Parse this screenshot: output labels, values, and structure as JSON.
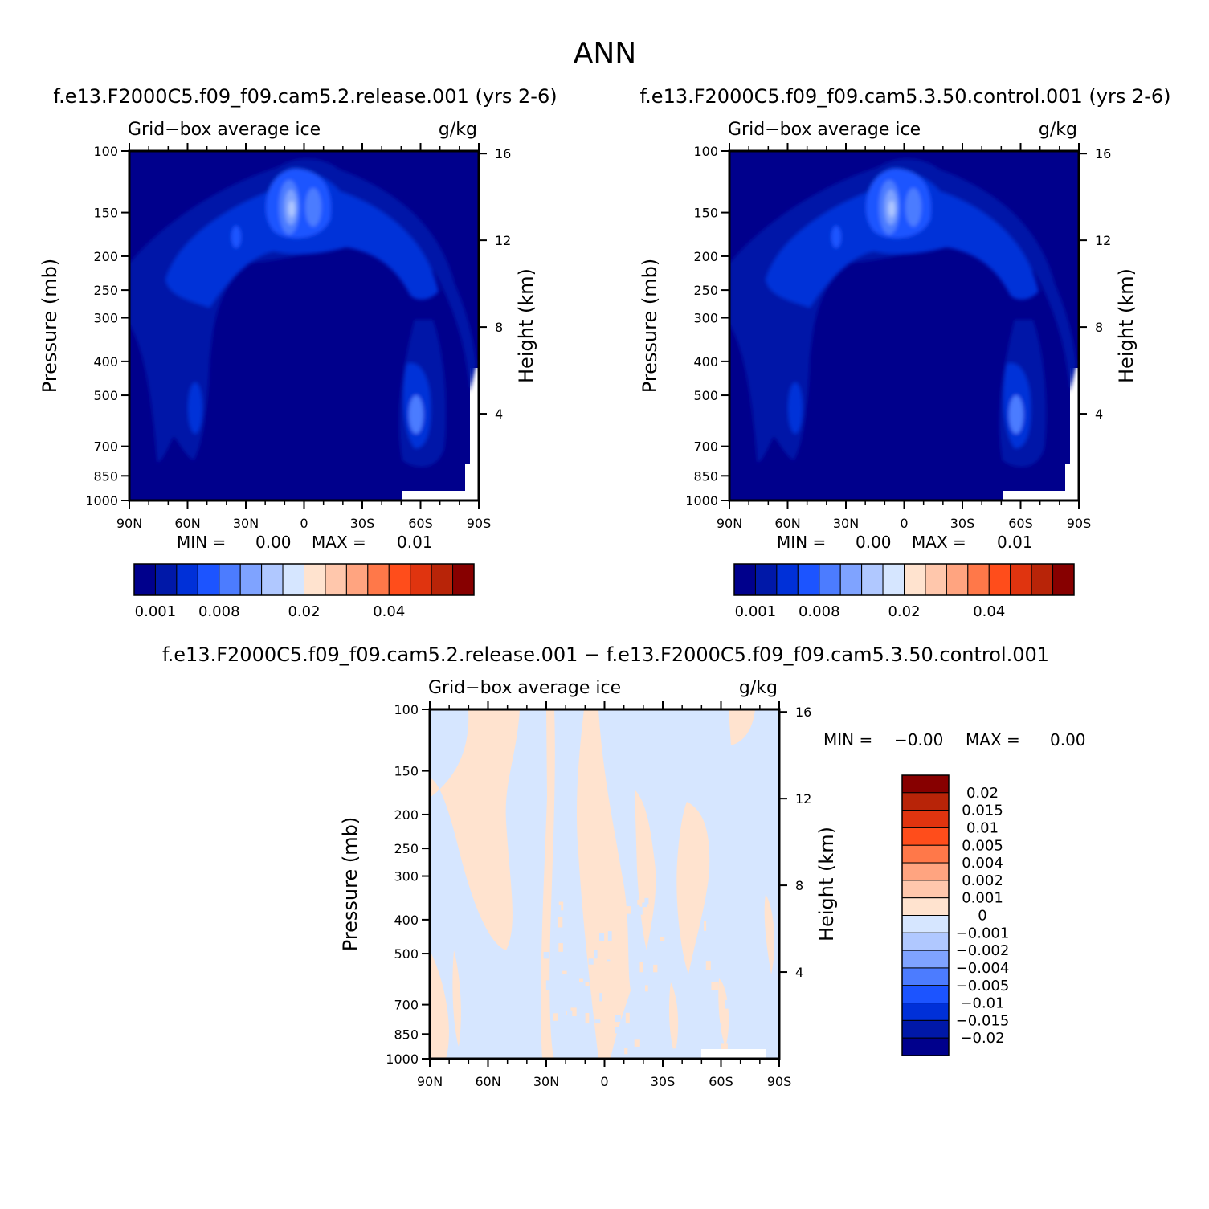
{
  "page_title": "ANN",
  "colors": {
    "ice_levels": [
      "#00008C",
      "#0018A8",
      "#0030D8",
      "#1C54FF",
      "#4C7CFF",
      "#7FA3FF",
      "#B0C8FF",
      "#D6E6FF",
      "#FFE3CF",
      "#FFC7AC",
      "#FFA480",
      "#FF7849",
      "#FF4D1B",
      "#E0340F",
      "#B82408",
      "#870000"
    ],
    "diff_levels": [
      "#00008C",
      "#0018A8",
      "#0030D8",
      "#1C54FF",
      "#4C7CFF",
      "#7FA3FF",
      "#B0C8FF",
      "#D6E6FF",
      "#FFE3CF",
      "#FFC7AC",
      "#FFA480",
      "#FF7849",
      "#FF4D1B",
      "#E0340F",
      "#B82408",
      "#870000"
    ]
  },
  "chart_data": [
    {
      "type": "heatmap",
      "title": "f.e13.F2000C5.f09_f09.cam5.2.release.001 (yrs 2-6)",
      "subtitle_left": "Grid−box average ice",
      "subtitle_right": "g/kg",
      "ylabel": "Pressure (mb)",
      "y2label": "Height (km)",
      "x_ticks": [
        "90N",
        "60N",
        "30N",
        "0",
        "30S",
        "60S",
        "90S"
      ],
      "y_ticks": [
        "100",
        "150",
        "200",
        "250",
        "300",
        "400",
        "500",
        "700",
        "850",
        "1000"
      ],
      "y2_ticks": [
        "16",
        "12",
        "8",
        "4"
      ],
      "xlim": [
        90,
        -90
      ],
      "ylim": [
        1000,
        100
      ],
      "stats": {
        "min_label": "MIN =",
        "min": "0.00",
        "max_label": "MAX =",
        "max": "0.01"
      },
      "colorbar_labels": [
        "0.001",
        "0.008",
        "0.02",
        "0.04"
      ],
      "pattern": "ice"
    },
    {
      "type": "heatmap",
      "title": "f.e13.F2000C5.f09_f09.cam5.3.50.control.001 (yrs 2-6)",
      "subtitle_left": "Grid−box average ice",
      "subtitle_right": "g/kg",
      "ylabel": "Pressure (mb)",
      "y2label": "Height (km)",
      "x_ticks": [
        "90N",
        "60N",
        "30N",
        "0",
        "30S",
        "60S",
        "90S"
      ],
      "y_ticks": [
        "100",
        "150",
        "200",
        "250",
        "300",
        "400",
        "500",
        "700",
        "850",
        "1000"
      ],
      "y2_ticks": [
        "16",
        "12",
        "8",
        "4"
      ],
      "xlim": [
        90,
        -90
      ],
      "ylim": [
        1000,
        100
      ],
      "stats": {
        "min_label": "MIN =",
        "min": "0.00",
        "max_label": "MAX =",
        "max": "0.01"
      },
      "colorbar_labels": [
        "0.001",
        "0.008",
        "0.02",
        "0.04"
      ],
      "pattern": "ice"
    },
    {
      "type": "heatmap",
      "title": "f.e13.F2000C5.f09_f09.cam5.2.release.001 − f.e13.F2000C5.f09_f09.cam5.3.50.control.001",
      "subtitle_left": "Grid−box average ice",
      "subtitle_right": "g/kg",
      "ylabel": "Pressure (mb)",
      "y2label": "Height (km)",
      "x_ticks": [
        "90N",
        "60N",
        "30N",
        "0",
        "30S",
        "60S",
        "90S"
      ],
      "y_ticks": [
        "100",
        "150",
        "200",
        "250",
        "300",
        "400",
        "500",
        "700",
        "850",
        "1000"
      ],
      "y2_ticks": [
        "16",
        "12",
        "8",
        "4"
      ],
      "xlim": [
        90,
        -90
      ],
      "ylim": [
        1000,
        100
      ],
      "stats": {
        "min_label": "MIN =",
        "min": "−0.00",
        "max_label": "MAX =",
        "max": "0.00"
      },
      "colorbar_labels": [
        "0.02",
        "0.015",
        "0.01",
        "0.005",
        "0.004",
        "0.002",
        "0.001",
        "0",
        "−0.001",
        "−0.002",
        "−0.004",
        "−0.005",
        "−0.01",
        "−0.015",
        "−0.02"
      ],
      "pattern": "diff"
    }
  ]
}
